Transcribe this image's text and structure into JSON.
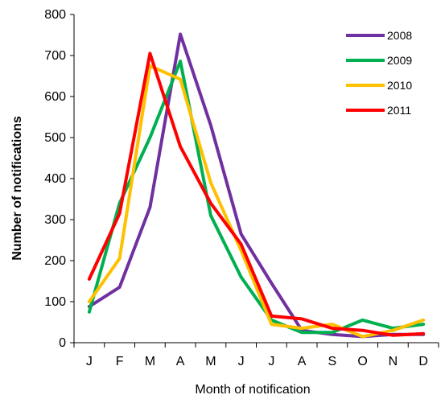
{
  "chart_data": {
    "type": "line",
    "title": "",
    "xlabel": "Month of notification",
    "ylabel": "Number of notifications",
    "categories": [
      "J",
      "F",
      "M",
      "A",
      "M",
      "J",
      "J",
      "A",
      "S",
      "O",
      "N",
      "D"
    ],
    "ylim": [
      0,
      800
    ],
    "yticks": [
      0,
      100,
      200,
      300,
      400,
      500,
      600,
      700,
      800
    ],
    "grid": false,
    "legend_position": "top-right",
    "series": [
      {
        "name": "2008",
        "color": "#7030A0",
        "values": [
          88,
          135,
          330,
          752,
          530,
          265,
          145,
          30,
          20,
          15,
          20,
          20
        ]
      },
      {
        "name": "2009",
        "color": "#00B050",
        "values": [
          75,
          340,
          500,
          686,
          310,
          160,
          55,
          25,
          25,
          55,
          35,
          45
        ]
      },
      {
        "name": "2010",
        "color": "#FFC000",
        "values": [
          100,
          205,
          675,
          642,
          390,
          225,
          45,
          35,
          45,
          15,
          30,
          55
        ]
      },
      {
        "name": "2011",
        "color": "#FF0000",
        "values": [
          155,
          315,
          705,
          478,
          340,
          240,
          65,
          58,
          35,
          30,
          18,
          22
        ]
      }
    ]
  }
}
